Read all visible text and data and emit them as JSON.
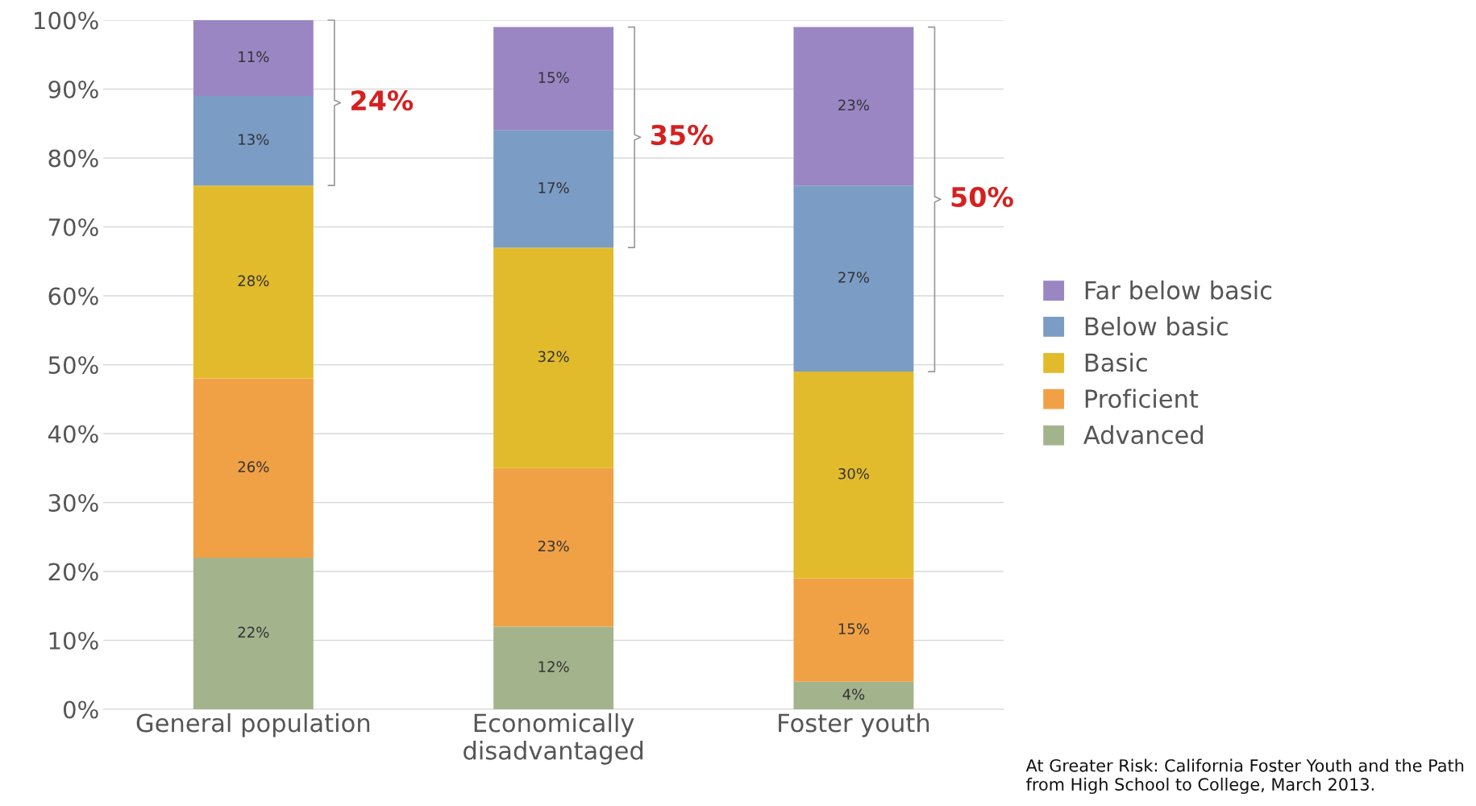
{
  "chart_data": {
    "type": "bar",
    "stacked": true,
    "categories": [
      "General population",
      "Economically\ndisadvantaged",
      "Foster youth"
    ],
    "series": [
      {
        "name": "Advanced",
        "color": "#a3b48d",
        "values": [
          22,
          12,
          4
        ],
        "value_labels": [
          "22%",
          "12%",
          "4%"
        ]
      },
      {
        "name": "Proficient",
        "color": "#f0a146",
        "values": [
          26,
          23,
          15
        ],
        "value_labels": [
          "26%",
          "23%",
          "15%"
        ]
      },
      {
        "name": "Basic",
        "color": "#e2bb2c",
        "values": [
          28,
          32,
          30
        ],
        "value_labels": [
          "28%",
          "32%",
          "30%"
        ]
      },
      {
        "name": "Below basic",
        "color": "#7b9cc5",
        "values": [
          13,
          17,
          27
        ],
        "value_labels": [
          "13%",
          "17%",
          "27%"
        ]
      },
      {
        "name": "Far below basic",
        "color": "#9b86c4",
        "values": [
          11,
          15,
          23
        ],
        "value_labels": [
          "11%",
          "15%",
          "23%"
        ]
      }
    ],
    "ylim": [
      0,
      100
    ],
    "yticks": [
      {
        "value": 0,
        "label": "0%"
      },
      {
        "value": 10,
        "label": "10%"
      },
      {
        "value": 20,
        "label": "20%"
      },
      {
        "value": 30,
        "label": "30%"
      },
      {
        "value": 40,
        "label": "40%"
      },
      {
        "value": 50,
        "label": "50%"
      },
      {
        "value": 60,
        "label": "60%"
      },
      {
        "value": 70,
        "label": "70%"
      },
      {
        "value": 80,
        "label": "80%"
      },
      {
        "value": 90,
        "label": "90%"
      },
      {
        "value": 100,
        "label": "100%"
      }
    ],
    "grid": "y",
    "legend": "right",
    "annotations": [
      "24%",
      "35%",
      "50%",
      "At Greater Risk: California Foster Youth and the Path from High School to College, March 2013."
    ]
  }
}
